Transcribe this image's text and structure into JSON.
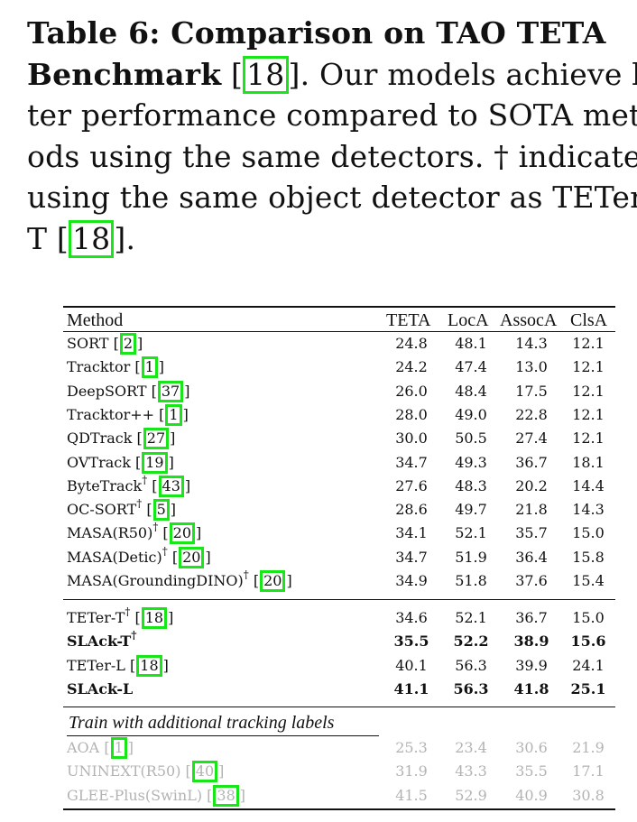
{
  "caption": {
    "table_label": "Table 6: Comparison on TAO TETA",
    "line2_bold": "Benchmark",
    "cite1": "18",
    "line2_rest": ". Our models achieve bet-",
    "line3": "ter performance compared to SOTA meth-",
    "line4": "ods using the same detectors. † indicates",
    "line5": "using the same object detector as TETer-",
    "line6_start": "T ",
    "cite2": "18",
    "line6_end": "]."
  },
  "table": {
    "headers": [
      "Method",
      "TETA",
      "LocA",
      "AssocA",
      "ClsA"
    ],
    "group1": [
      {
        "name": "SORT",
        "sup": "",
        "cite": "2",
        "vals": [
          "24.8",
          "48.1",
          "14.3",
          "12.1"
        ]
      },
      {
        "name": "Tracktor",
        "sup": "",
        "cite": "1",
        "vals": [
          "24.2",
          "47.4",
          "13.0",
          "12.1"
        ]
      },
      {
        "name": "DeepSORT",
        "sup": "",
        "cite": "37",
        "vals": [
          "26.0",
          "48.4",
          "17.5",
          "12.1"
        ]
      },
      {
        "name": "Tracktor++",
        "sup": "",
        "cite": "1",
        "vals": [
          "28.0",
          "49.0",
          "22.8",
          "12.1"
        ]
      },
      {
        "name": "QDTrack",
        "sup": "",
        "cite": "27",
        "vals": [
          "30.0",
          "50.5",
          "27.4",
          "12.1"
        ]
      },
      {
        "name": "OVTrack",
        "sup": "",
        "cite": "19",
        "vals": [
          "34.7",
          "49.3",
          "36.7",
          "18.1"
        ]
      },
      {
        "name": "ByteTrack",
        "sup": "†",
        "cite": "43",
        "vals": [
          "27.6",
          "48.3",
          "20.2",
          "14.4"
        ]
      },
      {
        "name": "OC-SORT",
        "sup": "†",
        "cite": "5",
        "vals": [
          "28.6",
          "49.7",
          "21.8",
          "14.3"
        ]
      },
      {
        "name": "MASA(R50)",
        "sup": "†",
        "cite": "20",
        "vals": [
          "34.1",
          "52.1",
          "35.7",
          "15.0"
        ]
      },
      {
        "name": "MASA(Detic)",
        "sup": "†",
        "cite": "20",
        "vals": [
          "34.7",
          "51.9",
          "36.4",
          "15.8"
        ]
      },
      {
        "name": "MASA(GroundingDINO)",
        "sup": "†",
        "cite": "20",
        "vals": [
          "34.9",
          "51.8",
          "37.6",
          "15.4"
        ]
      }
    ],
    "group2": [
      {
        "name": "TETer-T",
        "sup": "†",
        "cite": "18",
        "vals": [
          "34.6",
          "52.1",
          "36.7",
          "15.0"
        ],
        "bold": false
      },
      {
        "name": "SLAck-T",
        "sup": "†",
        "cite": "",
        "vals": [
          "35.5",
          "52.2",
          "38.9",
          "15.6"
        ],
        "bold": true
      },
      {
        "name": "TETer-L",
        "sup": "",
        "cite": "18",
        "vals": [
          "40.1",
          "56.3",
          "39.9",
          "24.1"
        ],
        "bold": false
      },
      {
        "name": "SLAck-L",
        "sup": "",
        "cite": "",
        "vals": [
          "41.1",
          "56.3",
          "41.8",
          "25.1"
        ],
        "bold": true
      }
    ],
    "subheading": "Train with additional tracking labels",
    "group3": [
      {
        "name": "AOA",
        "sup": "",
        "cite": "1",
        "vals": [
          "25.3",
          "23.4",
          "30.6",
          "21.9"
        ]
      },
      {
        "name": "UNINEXT(R50)",
        "sup": "",
        "cite": "40",
        "vals": [
          "31.9",
          "43.3",
          "35.5",
          "17.1"
        ]
      },
      {
        "name": "GLEE-Plus(SwinL)",
        "sup": "",
        "cite": "38",
        "vals": [
          "41.5",
          "52.9",
          "40.9",
          "30.8"
        ]
      }
    ]
  },
  "colors": {
    "citation_box": "#19e619",
    "gray_text": "#b3b3b3"
  }
}
